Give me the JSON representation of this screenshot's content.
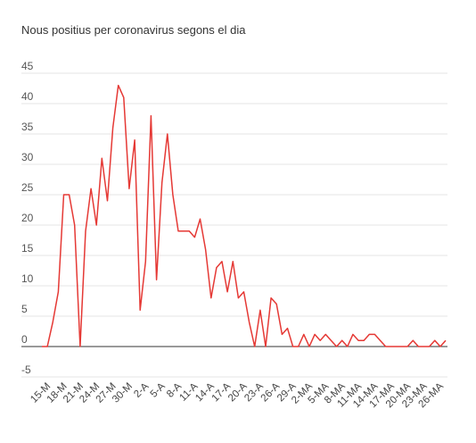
{
  "chart_data": {
    "type": "line",
    "title": "Nous positius per coronavirus segons el dia",
    "xlabel": "",
    "ylabel": "",
    "ylim": [
      -5,
      45
    ],
    "yticks": [
      -5,
      0,
      5,
      10,
      15,
      20,
      25,
      30,
      35,
      40,
      45
    ],
    "grid": true,
    "legend": "none",
    "color": "#e53935",
    "x": [
      "14-M",
      "15-M",
      "16-M",
      "17-M",
      "18-M",
      "19-M",
      "20-M",
      "21-M",
      "22-M",
      "23-M",
      "24-M",
      "25-M",
      "26-M",
      "27-M",
      "28-M",
      "29-M",
      "30-M",
      "31-M",
      "1-A",
      "2-A",
      "3-A",
      "4-A",
      "5-A",
      "6-A",
      "7-A",
      "8-A",
      "9-A",
      "10-A",
      "11-A",
      "12-A",
      "13-A",
      "14-A",
      "15-A",
      "16-A",
      "17-A",
      "18-A",
      "19-A",
      "20-A",
      "21-A",
      "22-A",
      "23-A",
      "24-A",
      "25-A",
      "26-A",
      "27-A",
      "28-A",
      "29-A",
      "30-A",
      "1-MA",
      "2-MA",
      "3-MA",
      "4-MA",
      "5-MA",
      "6-MA",
      "7-MA",
      "8-MA",
      "9-MA",
      "10-MA",
      "11-MA",
      "12-MA",
      "13-MA",
      "14-MA",
      "15-MA",
      "16-MA",
      "17-MA",
      "18-MA",
      "19-MA",
      "20-MA",
      "21-MA",
      "22-MA",
      "23-MA",
      "24-MA",
      "25-MA",
      "26-MA",
      "27-MA"
    ],
    "xtick_labels": [
      "15-M",
      "18-M",
      "21-M",
      "24-M",
      "27-M",
      "30-M",
      "2-A",
      "5-A",
      "8-A",
      "11-A",
      "14-A",
      "17-A",
      "20-A",
      "23-A",
      "26-A",
      "29-A",
      "2-MA",
      "5-MA",
      "8-MA",
      "11-MA",
      "14-MA",
      "17-MA",
      "20-MA",
      "23-MA",
      "26-MA"
    ],
    "values": [
      0,
      0,
      4,
      9,
      25,
      25,
      20,
      0,
      19,
      26,
      20,
      31,
      24,
      36,
      43,
      41,
      26,
      34,
      6,
      14,
      38,
      11,
      27,
      35,
      25,
      19,
      19,
      19,
      18,
      21,
      16,
      8,
      13,
      14,
      9,
      14,
      8,
      9,
      4,
      0,
      6,
      0,
      8,
      7,
      2,
      3,
      0,
      0,
      2,
      0,
      2,
      1,
      2,
      1,
      0,
      1,
      0,
      2,
      1,
      1,
      2,
      2,
      1,
      0,
      0,
      0,
      0,
      0,
      1,
      0,
      0,
      0,
      1,
      0,
      1
    ]
  }
}
